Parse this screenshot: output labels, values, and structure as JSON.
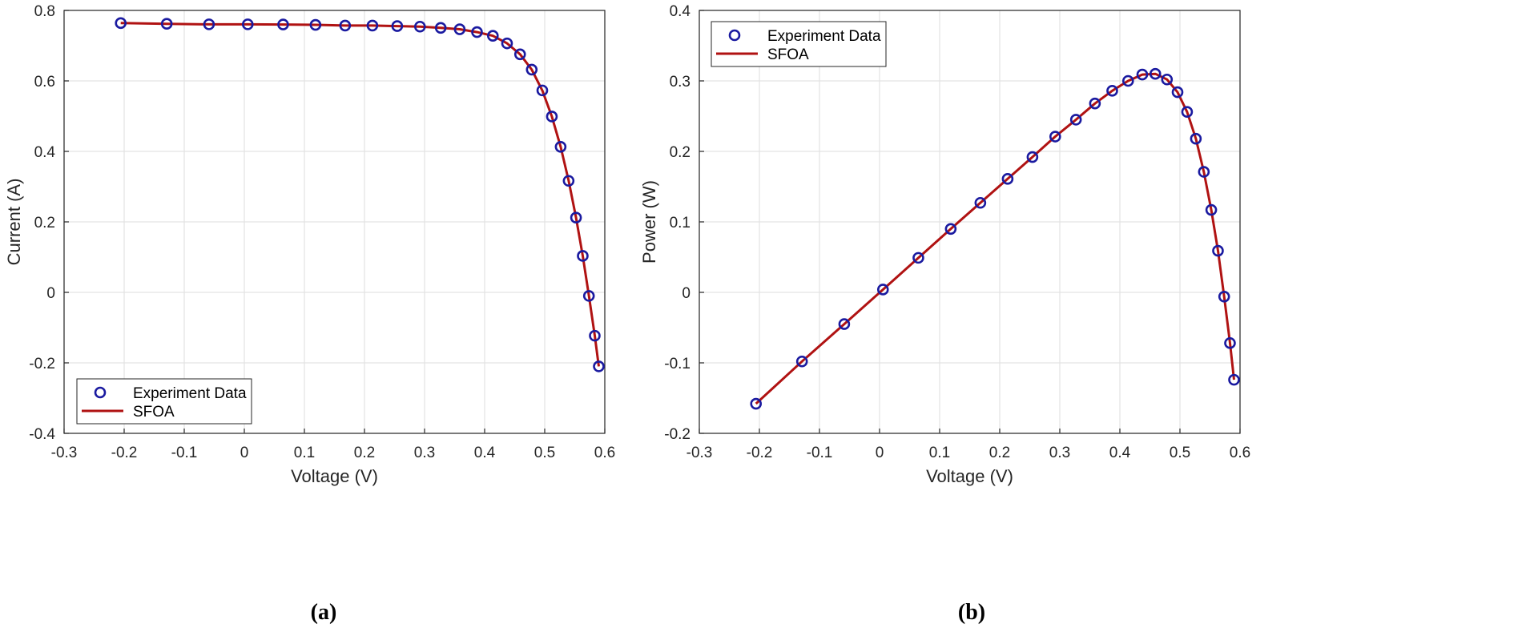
{
  "chart_data": [
    {
      "type": "line",
      "caption": "(a)",
      "xlabel": "Voltage (V)",
      "ylabel": "Current (A)",
      "xlim": [
        -0.3,
        0.6
      ],
      "ylim": [
        -0.4,
        0.8
      ],
      "xticks": [
        "-0.3",
        "-0.2",
        "-0.1",
        "0",
        "0.1",
        "0.2",
        "0.3",
        "0.4",
        "0.5",
        "0.6"
      ],
      "yticks": [
        "-0.4",
        "-0.2",
        "0",
        "0.2",
        "0.4",
        "0.6",
        "0.8"
      ],
      "grid": true,
      "legend": {
        "position": "bottom-left",
        "entries": [
          "Experiment Data",
          "SFOA"
        ]
      },
      "series": [
        {
          "name": "Experiment Data",
          "marker": "circle",
          "color": "#1a1aa0",
          "x": [
            -0.2057,
            -0.1291,
            -0.0588,
            0.0057,
            0.0646,
            0.1185,
            0.1678,
            0.2132,
            0.2545,
            0.2924,
            0.3269,
            0.3585,
            0.3873,
            0.4137,
            0.4373,
            0.459,
            0.4784,
            0.496,
            0.5119,
            0.5265,
            0.5398,
            0.5521,
            0.5633,
            0.5736,
            0.5833,
            0.59
          ],
          "y": [
            0.764,
            0.762,
            0.7605,
            0.7605,
            0.76,
            0.759,
            0.757,
            0.757,
            0.7555,
            0.754,
            0.7505,
            0.7465,
            0.7385,
            0.728,
            0.7065,
            0.6755,
            0.632,
            0.573,
            0.499,
            0.413,
            0.3165,
            0.212,
            0.1035,
            -0.01,
            -0.123,
            -0.21
          ]
        },
        {
          "name": "SFOA",
          "marker": "line",
          "color": "#b01212",
          "x": [
            -0.2057,
            -0.1291,
            -0.0588,
            0.0057,
            0.0646,
            0.1185,
            0.1678,
            0.2132,
            0.2545,
            0.2924,
            0.3269,
            0.3585,
            0.3873,
            0.4137,
            0.4373,
            0.459,
            0.4784,
            0.496,
            0.5119,
            0.5265,
            0.5398,
            0.5521,
            0.5633,
            0.5736,
            0.5833,
            0.59
          ],
          "y": [
            0.764,
            0.762,
            0.7605,
            0.7605,
            0.76,
            0.759,
            0.757,
            0.757,
            0.7555,
            0.754,
            0.7505,
            0.7465,
            0.7385,
            0.728,
            0.7065,
            0.6755,
            0.632,
            0.573,
            0.499,
            0.413,
            0.3165,
            0.212,
            0.1035,
            -0.01,
            -0.123,
            -0.21
          ]
        }
      ]
    },
    {
      "type": "line",
      "caption": "(b)",
      "xlabel": "Voltage (V)",
      "ylabel": "Power (W)",
      "xlim": [
        -0.3,
        0.6
      ],
      "ylim": [
        -0.2,
        0.4
      ],
      "xticks": [
        "-0.3",
        "-0.2",
        "-0.1",
        "0",
        "0.1",
        "0.2",
        "0.3",
        "0.4",
        "0.5",
        "0.6"
      ],
      "yticks": [
        "-0.2",
        "-0.1",
        "0",
        "0.1",
        "0.2",
        "0.3",
        "0.4"
      ],
      "grid": true,
      "legend": {
        "position": "top-left",
        "entries": [
          "Experiment Data",
          "SFOA"
        ]
      },
      "series": [
        {
          "name": "Experiment Data",
          "marker": "circle",
          "color": "#1a1aa0",
          "x": [
            -0.2057,
            -0.1291,
            -0.0588,
            0.0057,
            0.0646,
            0.1185,
            0.1678,
            0.2132,
            0.2545,
            0.2924,
            0.3269,
            0.3585,
            0.3873,
            0.4137,
            0.4373,
            0.459,
            0.4784,
            0.496,
            0.5119,
            0.5265,
            0.5398,
            0.5521,
            0.5633,
            0.5736,
            0.5833,
            0.59
          ],
          "y": [
            -0.158,
            -0.098,
            -0.045,
            0.004,
            0.049,
            0.09,
            0.127,
            0.161,
            0.192,
            0.221,
            0.245,
            0.268,
            0.286,
            0.3,
            0.309,
            0.31,
            0.302,
            0.284,
            0.256,
            0.218,
            0.171,
            0.117,
            0.059,
            -0.006,
            -0.072,
            -0.124
          ]
        },
        {
          "name": "SFOA",
          "marker": "line",
          "color": "#b01212",
          "x": [
            -0.2057,
            -0.1291,
            -0.0588,
            0.0057,
            0.0646,
            0.1185,
            0.1678,
            0.2132,
            0.2545,
            0.2924,
            0.3269,
            0.3585,
            0.3873,
            0.4137,
            0.4373,
            0.459,
            0.4784,
            0.496,
            0.5119,
            0.5265,
            0.5398,
            0.5521,
            0.5633,
            0.5736,
            0.5833,
            0.59
          ],
          "y": [
            -0.158,
            -0.098,
            -0.045,
            0.004,
            0.049,
            0.09,
            0.127,
            0.161,
            0.192,
            0.221,
            0.245,
            0.268,
            0.286,
            0.3,
            0.309,
            0.31,
            0.302,
            0.284,
            0.256,
            0.218,
            0.171,
            0.117,
            0.059,
            -0.006,
            -0.072,
            -0.124
          ]
        }
      ]
    }
  ]
}
